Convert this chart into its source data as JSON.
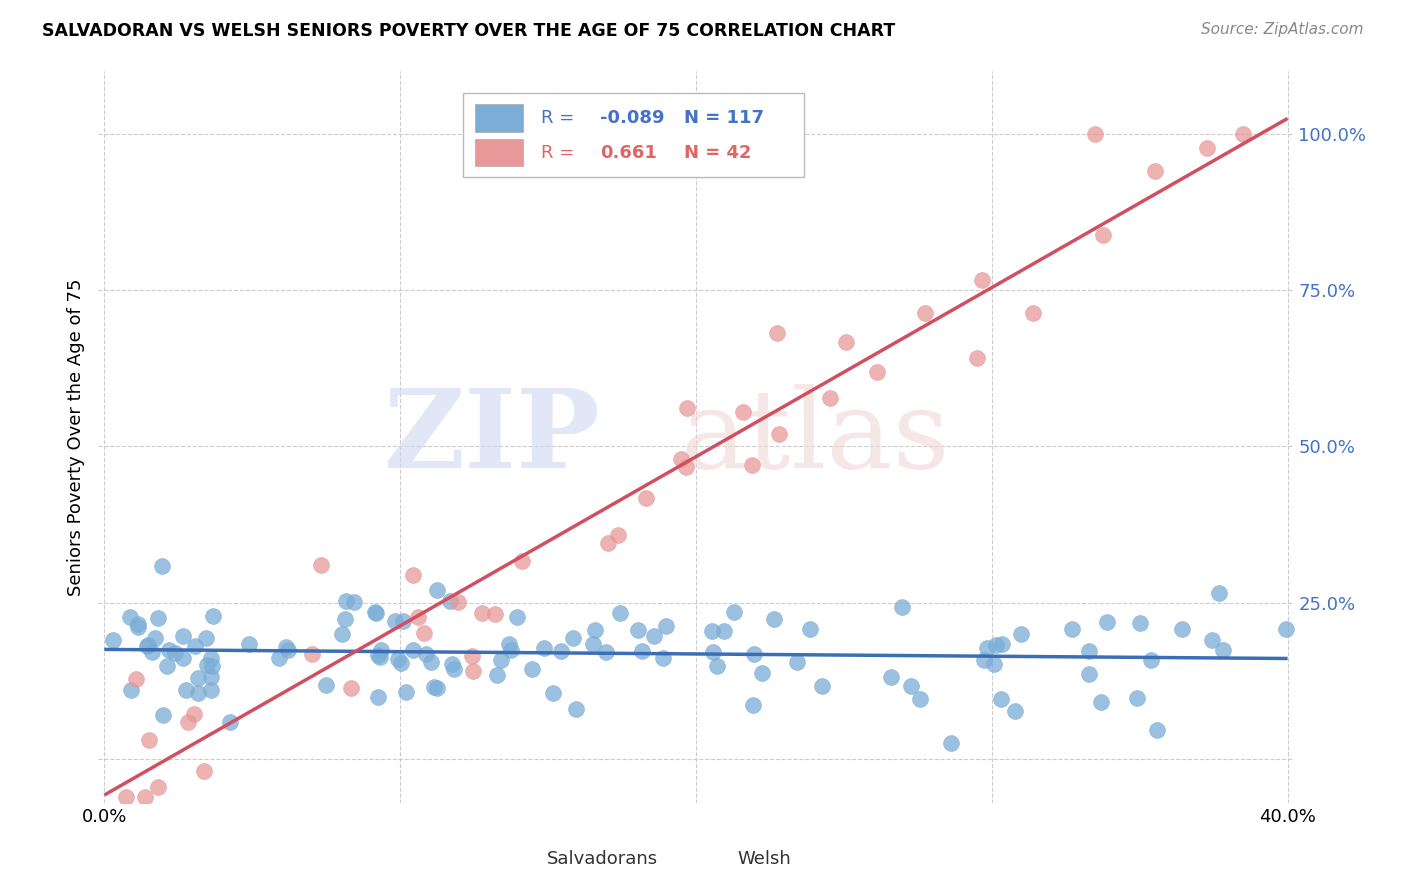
{
  "title": "SALVADORAN VS WELSH SENIORS POVERTY OVER THE AGE OF 75 CORRELATION CHART",
  "source": "Source: ZipAtlas.com",
  "ylabel": "Seniors Poverty Over the Age of 75",
  "blue_color": "#8ab4e0",
  "pink_color": "#e8a0a0",
  "blue_line_color": "#3c6eb5",
  "pink_line_color": "#d05060",
  "blue_scatter_color": "#7badd6",
  "pink_scatter_color": "#e89898",
  "legend_blue_r": "-0.089",
  "legend_blue_n": "117",
  "legend_pink_r": "0.661",
  "legend_pink_n": "42",
  "xlim": [
    0.0,
    0.4
  ],
  "ylim": [
    -0.07,
    1.1
  ],
  "yticks": [
    0.0,
    0.25,
    0.5,
    0.75,
    1.0
  ],
  "ytick_labels": [
    "",
    "25.0%",
    "50.0%",
    "75.0%",
    "100.0%"
  ],
  "xticks": [
    0.0,
    0.1,
    0.2,
    0.3,
    0.4
  ],
  "xtick_labels": [
    "0.0%",
    "",
    "",
    "",
    "40.0%"
  ],
  "watermark_zip": "ZIP",
  "watermark_atlas": "atlas"
}
